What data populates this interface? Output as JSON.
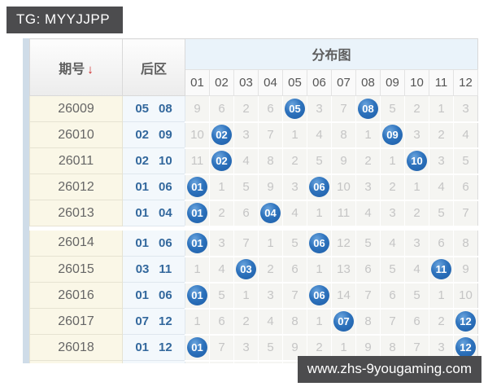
{
  "tag_label": "TG: MYYJJPP",
  "watermark_label": "www.zhs-9yougaming.com",
  "colors": {
    "overlay_bg": "#4c4c4e",
    "hit_ball_blue": "#2e73bd",
    "back_number_blue": "#33689d",
    "issue_column_bg": "#faf7e7",
    "miss_text_gray": "#c5c5c5",
    "sort_arrow_red": "#cc2222",
    "dist_header_bg": "#eaf3fa"
  },
  "table": {
    "issue_header": "期号",
    "sort_arrow": "↓",
    "back_header": "后区",
    "dist_header": "分布图",
    "dist_columns": [
      "01",
      "02",
      "03",
      "04",
      "05",
      "06",
      "07",
      "08",
      "09",
      "10",
      "11",
      "12"
    ],
    "group_break_after": "26013",
    "rows": [
      {
        "issue": "26009",
        "back": [
          "05",
          "08"
        ],
        "cells": [
          "9",
          "6",
          "2",
          "6",
          "05",
          "3",
          "7",
          "08",
          "5",
          "2",
          "1",
          "3"
        ]
      },
      {
        "issue": "26010",
        "back": [
          "02",
          "09"
        ],
        "cells": [
          "10",
          "02",
          "3",
          "7",
          "1",
          "4",
          "8",
          "1",
          "09",
          "3",
          "2",
          "4"
        ]
      },
      {
        "issue": "26011",
        "back": [
          "02",
          "10"
        ],
        "cells": [
          "11",
          "02",
          "4",
          "8",
          "2",
          "5",
          "9",
          "2",
          "1",
          "10",
          "3",
          "5"
        ]
      },
      {
        "issue": "26012",
        "back": [
          "01",
          "06"
        ],
        "cells": [
          "01",
          "1",
          "5",
          "9",
          "3",
          "06",
          "10",
          "3",
          "2",
          "1",
          "4",
          "6"
        ]
      },
      {
        "issue": "26013",
        "back": [
          "01",
          "04"
        ],
        "cells": [
          "01",
          "2",
          "6",
          "04",
          "4",
          "1",
          "11",
          "4",
          "3",
          "2",
          "5",
          "7"
        ]
      },
      {
        "issue": "26014",
        "back": [
          "01",
          "06"
        ],
        "cells": [
          "01",
          "3",
          "7",
          "1",
          "5",
          "06",
          "12",
          "5",
          "4",
          "3",
          "6",
          "8"
        ]
      },
      {
        "issue": "26015",
        "back": [
          "03",
          "11"
        ],
        "cells": [
          "1",
          "4",
          "03",
          "2",
          "6",
          "1",
          "13",
          "6",
          "5",
          "4",
          "11",
          "9"
        ]
      },
      {
        "issue": "26016",
        "back": [
          "01",
          "06"
        ],
        "cells": [
          "01",
          "5",
          "1",
          "3",
          "7",
          "06",
          "14",
          "7",
          "6",
          "5",
          "1",
          "10"
        ]
      },
      {
        "issue": "26017",
        "back": [
          "07",
          "12"
        ],
        "cells": [
          "1",
          "6",
          "2",
          "4",
          "8",
          "1",
          "07",
          "8",
          "7",
          "6",
          "2",
          "12"
        ]
      },
      {
        "issue": "26018",
        "back": [
          "01",
          "12"
        ],
        "cells": [
          "01",
          "7",
          "3",
          "5",
          "9",
          "2",
          "1",
          "9",
          "8",
          "7",
          "3",
          "12"
        ]
      }
    ]
  }
}
